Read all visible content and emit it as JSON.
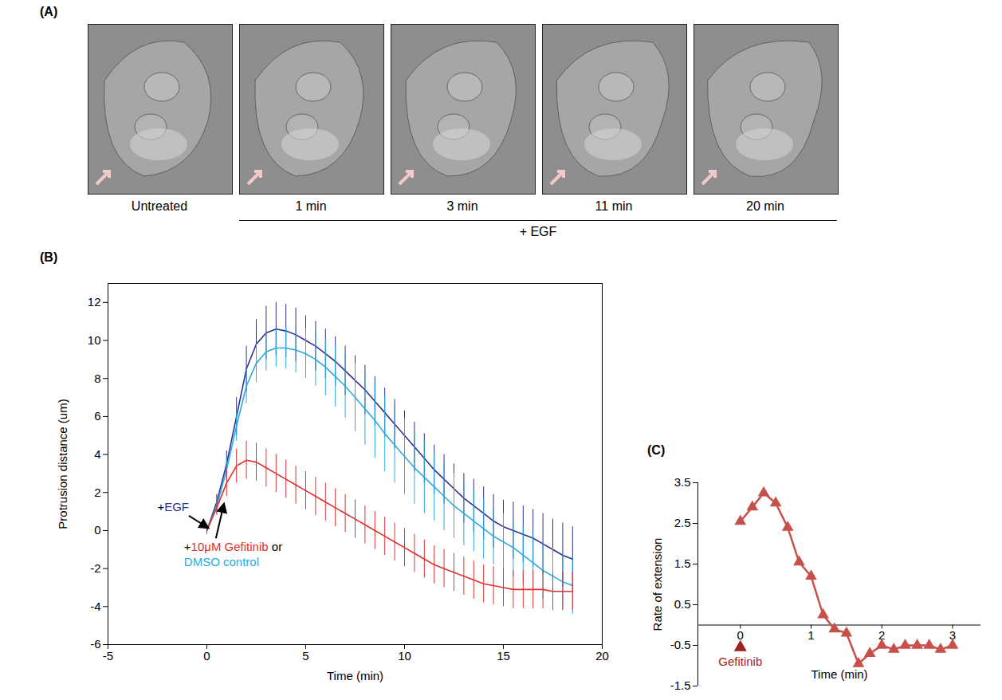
{
  "images": {
    "panel_label": "(A)",
    "frames": [
      "Untreated",
      "1 min",
      "3 min",
      "11 min",
      "20 min"
    ],
    "treatment": "+ EGF"
  },
  "chart_data": [
    {
      "panel_label": "(B)",
      "type": "line",
      "x_label": "Time (min)",
      "y_label": "Protrusion distance (um)",
      "x": [
        0,
        0.5,
        1,
        1.5,
        2,
        2.5,
        3,
        3.5,
        4,
        4.5,
        5,
        5.5,
        6,
        6.5,
        7,
        7.5,
        8,
        8.5,
        9,
        9.5,
        10,
        10.5,
        11,
        11.5,
        12,
        12.5,
        13,
        13.5,
        14,
        14.5,
        15,
        15.5,
        16,
        16.5,
        17,
        17.5,
        18,
        18.5
      ],
      "xlim": [
        -5,
        20
      ],
      "xticks": [
        -5,
        0,
        5,
        10,
        15,
        20
      ],
      "ylim": [
        -6,
        13
      ],
      "yticks": [
        -6,
        -4,
        -2,
        0,
        2,
        4,
        6,
        8,
        10,
        12
      ],
      "series": [
        {
          "name": "EGF",
          "color": "#2e3192",
          "values": [
            0,
            1.5,
            3.5,
            6,
            8.5,
            9.8,
            10.4,
            10.6,
            10.5,
            10.3,
            10.0,
            9.7,
            9.3,
            8.9,
            8.4,
            7.9,
            7.4,
            6.8,
            6.2,
            5.6,
            5.0,
            4.4,
            3.8,
            3.2,
            2.7,
            2.2,
            1.7,
            1.3,
            0.9,
            0.5,
            0.2,
            0,
            -0.2,
            -0.4,
            -0.7,
            -1.0,
            -1.3,
            -1.5
          ],
          "error": [
            0.2,
            0.4,
            0.7,
            1.0,
            1.2,
            1.3,
            1.4,
            1.4,
            1.4,
            1.4,
            1.3,
            1.3,
            1.3,
            1.3,
            1.3,
            1.3,
            1.3,
            1.3,
            1.3,
            1.3,
            1.3,
            1.3,
            1.3,
            1.3,
            1.3,
            1.3,
            1.3,
            1.4,
            1.4,
            1.4,
            1.4,
            1.5,
            1.5,
            1.5,
            1.6,
            1.6,
            1.7,
            1.7
          ]
        },
        {
          "name": "DMSO control",
          "color": "#29abe2",
          "values": [
            0,
            1.3,
            3.2,
            5.5,
            7.6,
            8.8,
            9.4,
            9.6,
            9.6,
            9.5,
            9.3,
            9.0,
            8.6,
            8.1,
            7.6,
            7.0,
            6.4,
            5.8,
            5.1,
            4.5,
            3.9,
            3.3,
            2.8,
            2.3,
            1.8,
            1.3,
            0.9,
            0.5,
            0.1,
            -0.3,
            -0.6,
            -0.9,
            -1.3,
            -1.7,
            -2.1,
            -2.4,
            -2.7,
            -2.9
          ],
          "error": [
            0.2,
            0.4,
            0.6,
            0.8,
            0.9,
            1.0,
            1.0,
            1.0,
            1.1,
            1.2,
            1.3,
            1.4,
            1.5,
            1.6,
            1.7,
            1.8,
            1.9,
            2.0,
            2.0,
            2.0,
            2.0,
            1.9,
            1.9,
            1.8,
            1.8,
            1.7,
            1.7,
            1.6,
            1.6,
            1.5,
            1.5,
            1.5,
            1.5,
            1.5,
            1.5,
            1.5,
            1.5,
            1.5
          ]
        },
        {
          "name": "10μM Gefitinib",
          "color": "#e0302f",
          "values": [
            0,
            1.2,
            2.5,
            3.4,
            3.7,
            3.6,
            3.3,
            3.0,
            2.7,
            2.4,
            2.1,
            1.8,
            1.5,
            1.2,
            0.9,
            0.6,
            0.3,
            0.0,
            -0.3,
            -0.6,
            -0.9,
            -1.2,
            -1.5,
            -1.8,
            -2.0,
            -2.2,
            -2.4,
            -2.6,
            -2.8,
            -2.9,
            -3.0,
            -3.1,
            -3.1,
            -3.1,
            -3.1,
            -3.2,
            -3.2,
            -3.2
          ],
          "error": [
            0.2,
            0.4,
            0.7,
            0.9,
            1.0,
            1.0,
            1.0,
            1.0,
            1.0,
            1.0,
            1.0,
            1.0,
            1.0,
            1.0,
            1.0,
            1.0,
            1.0,
            1.0,
            1.0,
            1.0,
            1.0,
            1.0,
            1.0,
            1.0,
            1.0,
            1.0,
            1.0,
            1.0,
            1.0,
            1.0,
            1.0,
            1.0,
            1.0,
            1.0,
            1.0,
            1.0,
            1.0,
            1.0
          ]
        }
      ],
      "annotations": [
        {
          "x": 0,
          "y": 0,
          "lines": [
            [
              {
                "text": "+"
              },
              {
                "series": "EGF"
              }
            ]
          ]
        },
        {
          "x": 0.8,
          "y": 1.5,
          "lines": [
            [
              {
                "text": "+"
              },
              {
                "series": "10μM Gefitinib"
              },
              {
                "text": " or"
              }
            ],
            [
              {
                "series": "DMSO control"
              }
            ]
          ]
        }
      ]
    },
    {
      "panel_label": "(C)",
      "type": "line",
      "marker": "triangle",
      "color": "#c8504a",
      "x_label": "Time (min)",
      "y_label": "Rate of extension",
      "x": [
        0,
        0.17,
        0.33,
        0.5,
        0.67,
        0.83,
        1,
        1.17,
        1.33,
        1.5,
        1.67,
        1.83,
        2,
        2.17,
        2.33,
        2.5,
        2.67,
        2.83,
        3
      ],
      "values": [
        2.55,
        2.9,
        3.25,
        3.0,
        2.4,
        1.55,
        1.2,
        0.25,
        -0.1,
        -0.2,
        -0.95,
        -0.7,
        -0.5,
        -0.6,
        -0.5,
        -0.5,
        -0.5,
        -0.6,
        -0.5
      ],
      "xlim": [
        -0.6,
        3.4
      ],
      "xticks": [
        0,
        1,
        2,
        3
      ],
      "ylim": [
        -1.5,
        3.5
      ],
      "yticks": [
        -1.5,
        -0.5,
        0.5,
        1.5,
        2.5,
        3.5
      ],
      "annotations": [
        {
          "text": "Gefitinib",
          "x": 0,
          "color": "#a0201e"
        }
      ]
    }
  ]
}
